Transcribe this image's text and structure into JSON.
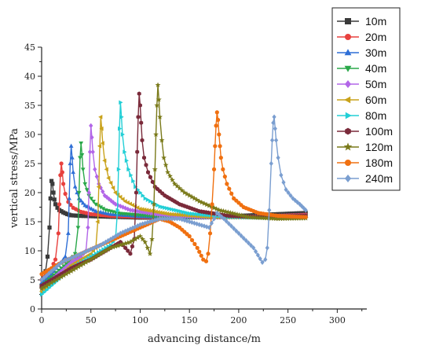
{
  "chart_data": {
    "type": "line",
    "xlabel": "advancing distance/m",
    "ylabel": "vertical stress/MPa",
    "xlim": [
      0,
      330
    ],
    "ylim": [
      0,
      45
    ],
    "xticks": [
      0,
      50,
      100,
      150,
      200,
      250,
      300
    ],
    "yticks": [
      0,
      5,
      10,
      15,
      20,
      25,
      30,
      35,
      40,
      45
    ],
    "grid": false,
    "legend_position": "right",
    "series": [
      {
        "name": "10m",
        "color": "#3a3a3a",
        "marker": "square",
        "x": [
          0,
          2,
          4,
          6,
          8,
          9,
          10,
          11,
          12,
          13,
          14,
          16,
          18,
          22,
          26,
          30,
          40,
          60,
          80,
          100,
          130,
          160,
          200,
          240,
          268
        ],
        "y": [
          4.0,
          5.0,
          6.5,
          9.0,
          14.0,
          19.0,
          22.0,
          21.5,
          20.0,
          18.8,
          18.0,
          17.4,
          17.0,
          16.6,
          16.3,
          16.1,
          16.0,
          15.9,
          15.8,
          15.7,
          15.7,
          15.8,
          16.0,
          16.3,
          16.5
        ]
      },
      {
        "name": "20m",
        "color": "#e8413e",
        "marker": "circle",
        "x": [
          0,
          5,
          10,
          14,
          17,
          18,
          19,
          20,
          21,
          22,
          24,
          27,
          32,
          40,
          50,
          70,
          100,
          150,
          200,
          268
        ],
        "y": [
          5.0,
          6.0,
          7.0,
          8.5,
          13.0,
          18.0,
          23.0,
          25.0,
          23.5,
          21.5,
          19.8,
          18.4,
          17.4,
          16.7,
          16.3,
          16.0,
          15.8,
          15.7,
          15.8,
          16.2
        ]
      },
      {
        "name": "30m",
        "color": "#2f6fd6",
        "marker": "triangle-up",
        "x": [
          0,
          10,
          20,
          24,
          27,
          28,
          29,
          30,
          31,
          32,
          34,
          38,
          44,
          55,
          70,
          100,
          150,
          200,
          268
        ],
        "y": [
          4.5,
          6.0,
          8.0,
          9.0,
          13.0,
          19.0,
          25.0,
          28.0,
          26.0,
          23.5,
          21.0,
          19.0,
          17.8,
          16.8,
          16.3,
          15.9,
          15.7,
          15.8,
          16.1
        ]
      },
      {
        "name": "40m",
        "color": "#2aa84a",
        "marker": "triangle-down",
        "x": [
          0,
          10,
          20,
          30,
          34,
          37,
          38,
          39,
          40,
          41,
          42,
          44,
          48,
          55,
          65,
          80,
          110,
          150,
          200,
          268
        ],
        "y": [
          4.0,
          5.5,
          7.0,
          8.5,
          9.5,
          14.0,
          20.0,
          26.0,
          28.5,
          26.5,
          24.0,
          21.5,
          19.5,
          18.0,
          17.0,
          16.4,
          16.0,
          15.7,
          15.8,
          16.0
        ]
      },
      {
        "name": "50m",
        "color": "#b266e8",
        "marker": "diamond",
        "x": [
          0,
          10,
          20,
          30,
          40,
          45,
          47,
          48,
          49,
          50,
          51,
          52,
          54,
          58,
          64,
          75,
          90,
          120,
          160,
          210,
          268
        ],
        "y": [
          3.5,
          5.0,
          6.5,
          8.0,
          9.0,
          10.0,
          14.0,
          20.0,
          27.0,
          31.5,
          29.5,
          27.0,
          24.0,
          21.5,
          19.5,
          18.0,
          17.0,
          16.2,
          15.8,
          15.8,
          16.0
        ]
      },
      {
        "name": "60m",
        "color": "#c9a21a",
        "marker": "triangle-left",
        "x": [
          0,
          10,
          20,
          30,
          40,
          50,
          55,
          57,
          58,
          59,
          60,
          61,
          62,
          64,
          68,
          75,
          85,
          100,
          130,
          170,
          220,
          268
        ],
        "y": [
          3.0,
          4.5,
          6.0,
          7.5,
          8.5,
          9.5,
          10.5,
          15.0,
          21.0,
          28.0,
          33.0,
          31.0,
          28.5,
          25.5,
          22.5,
          20.0,
          18.5,
          17.2,
          16.3,
          15.8,
          15.7,
          15.8
        ]
      },
      {
        "name": "80m",
        "color": "#22cfd6",
        "marker": "triangle-right",
        "x": [
          0,
          10,
          20,
          30,
          40,
          50,
          60,
          70,
          75,
          77,
          78,
          79,
          80,
          81,
          82,
          84,
          88,
          95,
          105,
          120,
          150,
          190,
          230,
          268
        ],
        "y": [
          2.5,
          4.0,
          5.5,
          7.0,
          8.0,
          9.0,
          10.0,
          11.0,
          12.0,
          17.0,
          24.0,
          31.0,
          35.5,
          33.0,
          30.0,
          27.0,
          24.0,
          21.0,
          19.0,
          17.6,
          16.4,
          15.8,
          15.7,
          15.8
        ]
      },
      {
        "name": "100m",
        "color": "#7a2a3a",
        "marker": "hexagon",
        "x": [
          0,
          10,
          20,
          30,
          40,
          50,
          60,
          70,
          80,
          85,
          90,
          94,
          96,
          97,
          98,
          99,
          100,
          101,
          102,
          104,
          108,
          115,
          125,
          140,
          160,
          190,
          220,
          268
        ],
        "y": [
          4.0,
          5.0,
          6.0,
          7.0,
          7.8,
          8.5,
          9.5,
          10.5,
          11.5,
          10.5,
          9.5,
          12.0,
          20.0,
          27.0,
          33.0,
          37.0,
          35.0,
          32.0,
          29.0,
          26.0,
          23.5,
          21.0,
          19.5,
          18.0,
          16.8,
          16.0,
          15.8,
          16.0
        ]
      },
      {
        "name": "120m",
        "color": "#7a7a1a",
        "marker": "star",
        "x": [
          0,
          10,
          20,
          30,
          40,
          50,
          60,
          70,
          80,
          90,
          100,
          105,
          110,
          112,
          114,
          115,
          116,
          117,
          118,
          119,
          120,
          122,
          124,
          128,
          135,
          145,
          160,
          180,
          210,
          240,
          268
        ],
        "y": [
          3.5,
          4.5,
          5.5,
          6.5,
          7.5,
          8.5,
          9.5,
          10.5,
          11.0,
          11.5,
          12.5,
          11.5,
          9.5,
          12.0,
          18.0,
          24.0,
          30.0,
          35.0,
          38.5,
          36.0,
          33.0,
          29.0,
          26.0,
          23.5,
          21.5,
          20.0,
          18.5,
          17.0,
          15.8,
          15.5,
          15.6
        ]
      },
      {
        "name": "180m",
        "color": "#f07010",
        "marker": "circle",
        "x": [
          0,
          20,
          40,
          60,
          80,
          100,
          120,
          130,
          140,
          150,
          158,
          164,
          167,
          169,
          171,
          173,
          175,
          176,
          177,
          178,
          179,
          180,
          181,
          182,
          184,
          188,
          195,
          205,
          220,
          240,
          268
        ],
        "y": [
          6.0,
          8.0,
          9.5,
          11.0,
          12.5,
          14.0,
          15.5,
          15.0,
          14.0,
          12.5,
          10.5,
          8.5,
          8.2,
          9.5,
          13.0,
          18.0,
          24.0,
          28.0,
          31.5,
          33.8,
          32.5,
          30.0,
          28.0,
          26.0,
          24.0,
          21.5,
          19.0,
          17.5,
          16.5,
          16.0,
          15.8
        ]
      },
      {
        "name": "240m",
        "color": "#7a9ed0",
        "marker": "diamond",
        "x": [
          0,
          20,
          40,
          60,
          80,
          100,
          120,
          140,
          160,
          170,
          175,
          178,
          185,
          200,
          215,
          224,
          227,
          229,
          231,
          233,
          234,
          235,
          236,
          237,
          238,
          240,
          243,
          248,
          255,
          262,
          268
        ],
        "y": [
          5.0,
          8.0,
          9.5,
          11.0,
          13.0,
          14.5,
          15.5,
          15.5,
          14.5,
          14.0,
          15.5,
          16.5,
          15.5,
          13.0,
          10.5,
          8.0,
          8.5,
          10.5,
          17.0,
          25.0,
          29.0,
          32.0,
          33.0,
          31.0,
          29.0,
          26.0,
          23.0,
          20.5,
          19.0,
          18.0,
          17.0
        ]
      }
    ]
  }
}
